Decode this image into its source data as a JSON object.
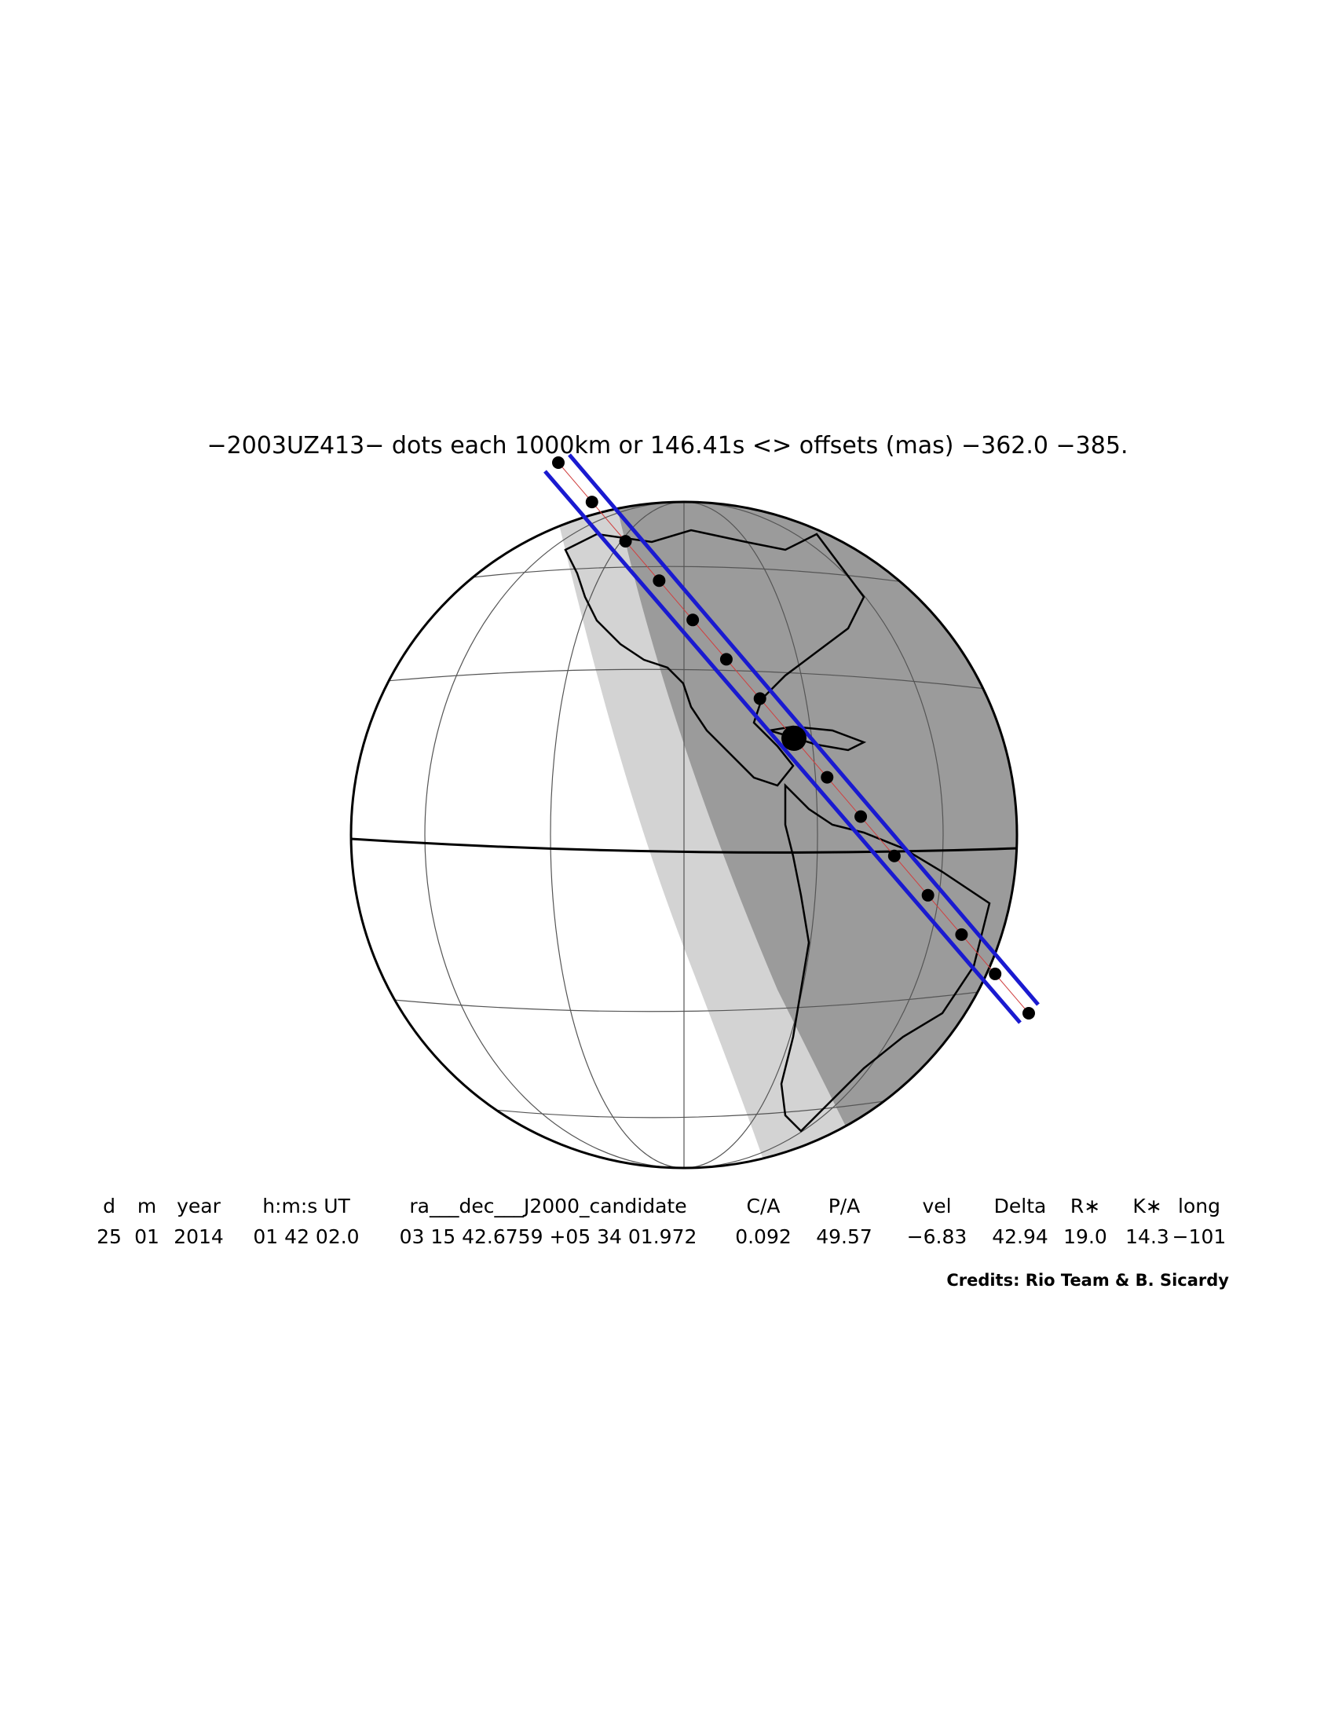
{
  "header": {
    "title": "−2003UZ413− dots each 1000km or 146.41s <> offsets (mas) −362.0 −385."
  },
  "table": {
    "columns": [
      "d",
      "m",
      "year",
      "h:m:s UT",
      "ra___dec___J2000_candidate",
      "C/A",
      "P/A",
      "vel",
      "Delta",
      "R∗",
      "K∗",
      "long"
    ],
    "values": [
      "25",
      "01",
      "2014",
      "01 42 02.0",
      "03 15 42.6759 +05 34 01.972",
      "0.092",
      "49.57",
      "−6.83",
      "42.94",
      "19.0",
      "14.3",
      "−101"
    ]
  },
  "credits": "Credits: Rio Team & B. Sicardy"
}
